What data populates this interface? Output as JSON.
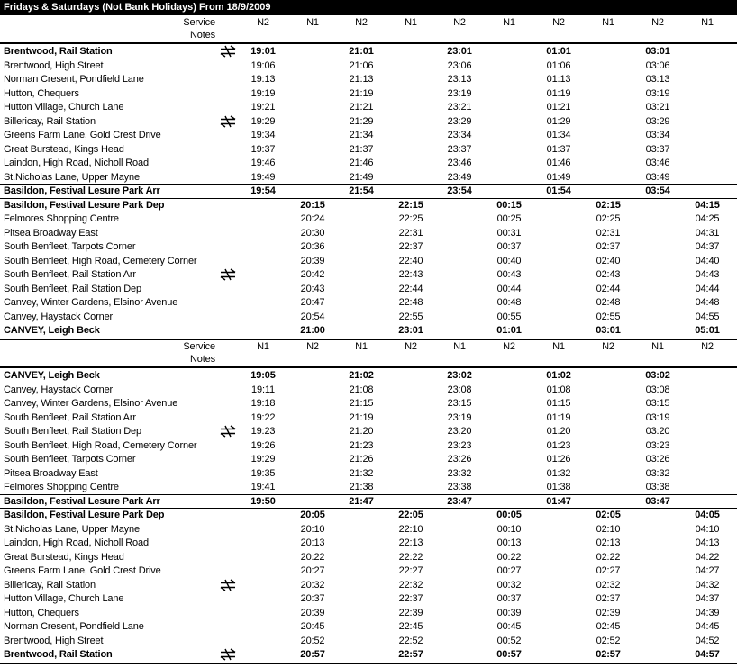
{
  "title": "Fridays & Saturdays (Not Bank Holidays) From 18/9/2009",
  "sections": [
    {
      "service_label": "Service",
      "notes_label": "Notes",
      "services": [
        "N2",
        "N1",
        "N2",
        "N1",
        "N2",
        "N1",
        "N2",
        "N1",
        "N2",
        "N1"
      ],
      "rows": [
        {
          "stop": "Brentwood, Rail Station",
          "bold": true,
          "rail": true,
          "times": [
            "19:01",
            null,
            "21:01",
            null,
            "23:01",
            null,
            "01:01",
            null,
            "03:01",
            null
          ]
        },
        {
          "stop": "Brentwood, High Street",
          "times": [
            "19:06",
            null,
            "21:06",
            null,
            "23:06",
            null,
            "01:06",
            null,
            "03:06",
            null
          ]
        },
        {
          "stop": "Norman Cresent, Pondfield Lane",
          "times": [
            "19:13",
            null,
            "21:13",
            null,
            "23:13",
            null,
            "01:13",
            null,
            "03:13",
            null
          ]
        },
        {
          "stop": "Hutton, Chequers",
          "times": [
            "19:19",
            null,
            "21:19",
            null,
            "23:19",
            null,
            "01:19",
            null,
            "03:19",
            null
          ]
        },
        {
          "stop": "Hutton Village, Church Lane",
          "times": [
            "19:21",
            null,
            "21:21",
            null,
            "23:21",
            null,
            "01:21",
            null,
            "03:21",
            null
          ]
        },
        {
          "stop": "Billericay, Rail Station",
          "rail": true,
          "times": [
            "19:29",
            null,
            "21:29",
            null,
            "23:29",
            null,
            "01:29",
            null,
            "03:29",
            null
          ]
        },
        {
          "stop": "Greens Farm Lane, Gold Crest Drive",
          "times": [
            "19:34",
            null,
            "21:34",
            null,
            "23:34",
            null,
            "01:34",
            null,
            "03:34",
            null
          ]
        },
        {
          "stop": "Great Burstead, Kings Head",
          "times": [
            "19:37",
            null,
            "21:37",
            null,
            "23:37",
            null,
            "01:37",
            null,
            "03:37",
            null
          ]
        },
        {
          "stop": "Laindon, High Road, Nicholl Road",
          "times": [
            "19:46",
            null,
            "21:46",
            null,
            "23:46",
            null,
            "01:46",
            null,
            "03:46",
            null
          ]
        },
        {
          "stop": "St.Nicholas Lane, Upper Mayne",
          "times": [
            "19:49",
            null,
            "21:49",
            null,
            "23:49",
            null,
            "01:49",
            null,
            "03:49",
            null
          ]
        },
        {
          "stop": "Basildon, Festival Lesure Park Arr",
          "bold": true,
          "rule": true,
          "times": [
            "19:54",
            null,
            "21:54",
            null,
            "23:54",
            null,
            "01:54",
            null,
            "03:54",
            null
          ]
        },
        {
          "stop": "Basildon, Festival Lesure Park Dep",
          "bold": true,
          "rule": true,
          "times": [
            null,
            "20:15",
            null,
            "22:15",
            null,
            "00:15",
            null,
            "02:15",
            null,
            "04:15"
          ]
        },
        {
          "stop": "Felmores Shopping Centre",
          "times": [
            null,
            "20:24",
            null,
            "22:25",
            null,
            "00:25",
            null,
            "02:25",
            null,
            "04:25"
          ]
        },
        {
          "stop": "Pitsea Broadway East",
          "times": [
            null,
            "20:30",
            null,
            "22:31",
            null,
            "00:31",
            null,
            "02:31",
            null,
            "04:31"
          ]
        },
        {
          "stop": "South Benfleet, Tarpots Corner",
          "times": [
            null,
            "20:36",
            null,
            "22:37",
            null,
            "00:37",
            null,
            "02:37",
            null,
            "04:37"
          ]
        },
        {
          "stop": "South Benfleet, High Road, Cemetery Corner",
          "times": [
            null,
            "20:39",
            null,
            "22:40",
            null,
            "00:40",
            null,
            "02:40",
            null,
            "04:40"
          ]
        },
        {
          "stop": "South Benfleet, Rail Station Arr",
          "rail": true,
          "times": [
            null,
            "20:42",
            null,
            "22:43",
            null,
            "00:43",
            null,
            "02:43",
            null,
            "04:43"
          ]
        },
        {
          "stop": "South Benfleet, Rail Station Dep",
          "times": [
            null,
            "20:43",
            null,
            "22:44",
            null,
            "00:44",
            null,
            "02:44",
            null,
            "04:44"
          ]
        },
        {
          "stop": "Canvey, Winter Gardens, Elsinor Avenue",
          "times": [
            null,
            "20:47",
            null,
            "22:48",
            null,
            "00:48",
            null,
            "02:48",
            null,
            "04:48"
          ]
        },
        {
          "stop": "Canvey, Haystack Corner",
          "times": [
            null,
            "20:54",
            null,
            "22:55",
            null,
            "00:55",
            null,
            "02:55",
            null,
            "04:55"
          ]
        },
        {
          "stop": "CANVEY, Leigh Beck",
          "bold": true,
          "times": [
            null,
            "21:00",
            null,
            "23:01",
            null,
            "01:01",
            null,
            "03:01",
            null,
            "05:01"
          ]
        }
      ]
    },
    {
      "service_label": "Service",
      "notes_label": "Notes",
      "services": [
        "N1",
        "N2",
        "N1",
        "N2",
        "N1",
        "N2",
        "N1",
        "N2",
        "N1",
        "N2"
      ],
      "rows": [
        {
          "stop": "CANVEY, Leigh Beck",
          "bold": true,
          "times": [
            "19:05",
            null,
            "21:02",
            null,
            "23:02",
            null,
            "01:02",
            null,
            "03:02",
            null
          ]
        },
        {
          "stop": "Canvey, Haystack Corner",
          "times": [
            "19:11",
            null,
            "21:08",
            null,
            "23:08",
            null,
            "01:08",
            null,
            "03:08",
            null
          ]
        },
        {
          "stop": "Canvey, Winter Gardens, Elsinor Avenue",
          "times": [
            "19:18",
            null,
            "21:15",
            null,
            "23:15",
            null,
            "01:15",
            null,
            "03:15",
            null
          ]
        },
        {
          "stop": "South Benfleet, Rail Station Arr",
          "times": [
            "19:22",
            null,
            "21:19",
            null,
            "23:19",
            null,
            "01:19",
            null,
            "03:19",
            null
          ]
        },
        {
          "stop": "South Benfleet, Rail Station Dep",
          "rail": true,
          "times": [
            "19:23",
            null,
            "21:20",
            null,
            "23:20",
            null,
            "01:20",
            null,
            "03:20",
            null
          ]
        },
        {
          "stop": "South Benfleet, High Road, Cemetery Corner",
          "times": [
            "19:26",
            null,
            "21:23",
            null,
            "23:23",
            null,
            "01:23",
            null,
            "03:23",
            null
          ]
        },
        {
          "stop": "South Benfleet, Tarpots Corner",
          "times": [
            "19:29",
            null,
            "21:26",
            null,
            "23:26",
            null,
            "01:26",
            null,
            "03:26",
            null
          ]
        },
        {
          "stop": "Pitsea Broadway East",
          "times": [
            "19:35",
            null,
            "21:32",
            null,
            "23:32",
            null,
            "01:32",
            null,
            "03:32",
            null
          ]
        },
        {
          "stop": "Felmores Shopping Centre",
          "times": [
            "19:41",
            null,
            "21:38",
            null,
            "23:38",
            null,
            "01:38",
            null,
            "03:38",
            null
          ]
        },
        {
          "stop": "Basildon, Festival Lesure Park Arr",
          "bold": true,
          "rule": true,
          "times": [
            "19:50",
            null,
            "21:47",
            null,
            "23:47",
            null,
            "01:47",
            null,
            "03:47",
            null
          ]
        },
        {
          "stop": "Basildon, Festival Lesure Park Dep",
          "bold": true,
          "rule": true,
          "times": [
            null,
            "20:05",
            null,
            "22:05",
            null,
            "00:05",
            null,
            "02:05",
            null,
            "04:05"
          ]
        },
        {
          "stop": "St.Nicholas Lane, Upper Mayne",
          "times": [
            null,
            "20:10",
            null,
            "22:10",
            null,
            "00:10",
            null,
            "02:10",
            null,
            "04:10"
          ]
        },
        {
          "stop": "Laindon, High Road, Nicholl Road",
          "times": [
            null,
            "20:13",
            null,
            "22:13",
            null,
            "00:13",
            null,
            "02:13",
            null,
            "04:13"
          ]
        },
        {
          "stop": "Great Burstead, Kings Head",
          "times": [
            null,
            "20:22",
            null,
            "22:22",
            null,
            "00:22",
            null,
            "02:22",
            null,
            "04:22"
          ]
        },
        {
          "stop": "Greens Farm Lane, Gold Crest Drive",
          "times": [
            null,
            "20:27",
            null,
            "22:27",
            null,
            "00:27",
            null,
            "02:27",
            null,
            "04:27"
          ]
        },
        {
          "stop": "Billericay, Rail Station",
          "rail": true,
          "times": [
            null,
            "20:32",
            null,
            "22:32",
            null,
            "00:32",
            null,
            "02:32",
            null,
            "04:32"
          ]
        },
        {
          "stop": "Hutton Village, Church Lane",
          "times": [
            null,
            "20:37",
            null,
            "22:37",
            null,
            "00:37",
            null,
            "02:37",
            null,
            "04:37"
          ]
        },
        {
          "stop": "Hutton, Chequers",
          "times": [
            null,
            "20:39",
            null,
            "22:39",
            null,
            "00:39",
            null,
            "02:39",
            null,
            "04:39"
          ]
        },
        {
          "stop": "Norman Cresent, Pondfield Lane",
          "times": [
            null,
            "20:45",
            null,
            "22:45",
            null,
            "00:45",
            null,
            "02:45",
            null,
            "04:45"
          ]
        },
        {
          "stop": "Brentwood, High Street",
          "times": [
            null,
            "20:52",
            null,
            "22:52",
            null,
            "00:52",
            null,
            "02:52",
            null,
            "04:52"
          ]
        },
        {
          "stop": "Brentwood, Rail Station",
          "bold": true,
          "rail": true,
          "times": [
            null,
            "20:57",
            null,
            "22:57",
            null,
            "00:57",
            null,
            "02:57",
            null,
            "04:57"
          ]
        }
      ]
    }
  ]
}
